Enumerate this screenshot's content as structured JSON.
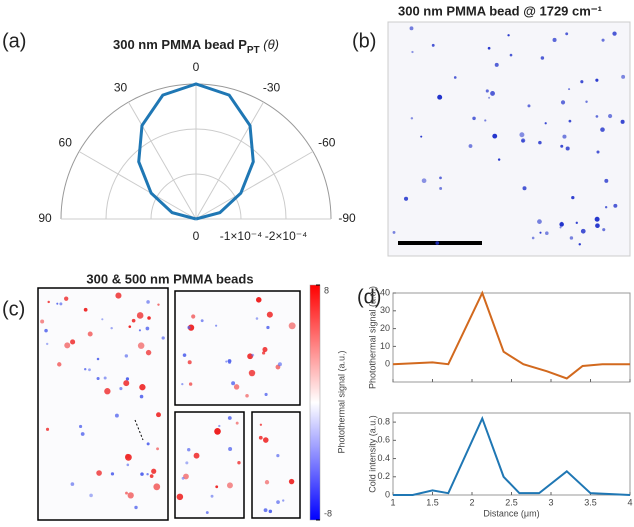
{
  "panel_labels": [
    "(a)",
    "(b)",
    "(c)",
    "(d)"
  ],
  "panel_b": {
    "title": "300 nm PMMA bead @ 1729 cm⁻¹"
  },
  "panel_c": {
    "title": "300 & 500 nm PMMA beads",
    "colorbar_label": "Photothermal signal (a.u.)",
    "clim": [
      -8,
      8
    ],
    "colorbar_ticks": [
      8,
      -8
    ]
  },
  "chart_data": [
    {
      "type": "polar",
      "title": [
        "300 nm PMMA bead P",
        "PT",
        " (θ)"
      ],
      "theta": [
        -90,
        -75,
        -60,
        -45,
        -30,
        -15,
        0,
        15,
        30,
        45,
        60,
        75,
        90
      ],
      "values": [
        0,
        -5.5e-05,
        -0.000115,
        -0.00018,
        -0.00024,
        -0.000285,
        -0.0003,
        -0.000285,
        -0.00024,
        -0.00018,
        -0.000115,
        -5.5e-05,
        0
      ],
      "color": "#1f77b4",
      "rlim": [
        0,
        -0.0003
      ],
      "rticks": [
        0,
        {
          "value": -0.0001,
          "label": "-1×10⁻⁴"
        },
        {
          "value": -0.0002,
          "label": "-2×10⁻⁴"
        }
      ],
      "thetaticks": [
        -90,
        -60,
        -30,
        0,
        30,
        60,
        90
      ]
    },
    {
      "type": "line",
      "ylabel": "Photothermal signal (a.u.)",
      "x": [
        1,
        1.5,
        1.7,
        2.13,
        2.4,
        2.65,
        2.95,
        3.2,
        3.4,
        3.65,
        4
      ],
      "values": [
        0,
        1,
        0,
        40,
        7,
        0,
        -4,
        -8,
        -1,
        0,
        0
      ],
      "color": "#d2691e",
      "xlim": [
        1,
        4
      ],
      "xticks": [
        1,
        1.5,
        2,
        2.5,
        3,
        3.5,
        4
      ],
      "xticklabels": false,
      "ylim": [
        -10,
        40
      ],
      "yticks": [
        0,
        10,
        20,
        30,
        40
      ]
    },
    {
      "type": "line",
      "ylabel": "Cold intensity (a.u.)",
      "xlabel": "Distance (μm)",
      "x": [
        1,
        1.25,
        1.5,
        1.7,
        2.13,
        2.4,
        2.6,
        2.85,
        3.2,
        3.5,
        4
      ],
      "values": [
        0,
        0,
        0.05,
        0.02,
        0.84,
        0.2,
        0.02,
        0.02,
        0.26,
        0.02,
        0
      ],
      "color": "#1f77b4",
      "xlim": [
        1,
        4
      ],
      "xticks": [
        1,
        1.5,
        2,
        2.5,
        3,
        3.5,
        4
      ],
      "xticklabels": true,
      "ylim": [
        0,
        0.9
      ],
      "yticks": [
        0,
        0.2,
        0.4,
        0.6,
        0.8
      ]
    }
  ]
}
